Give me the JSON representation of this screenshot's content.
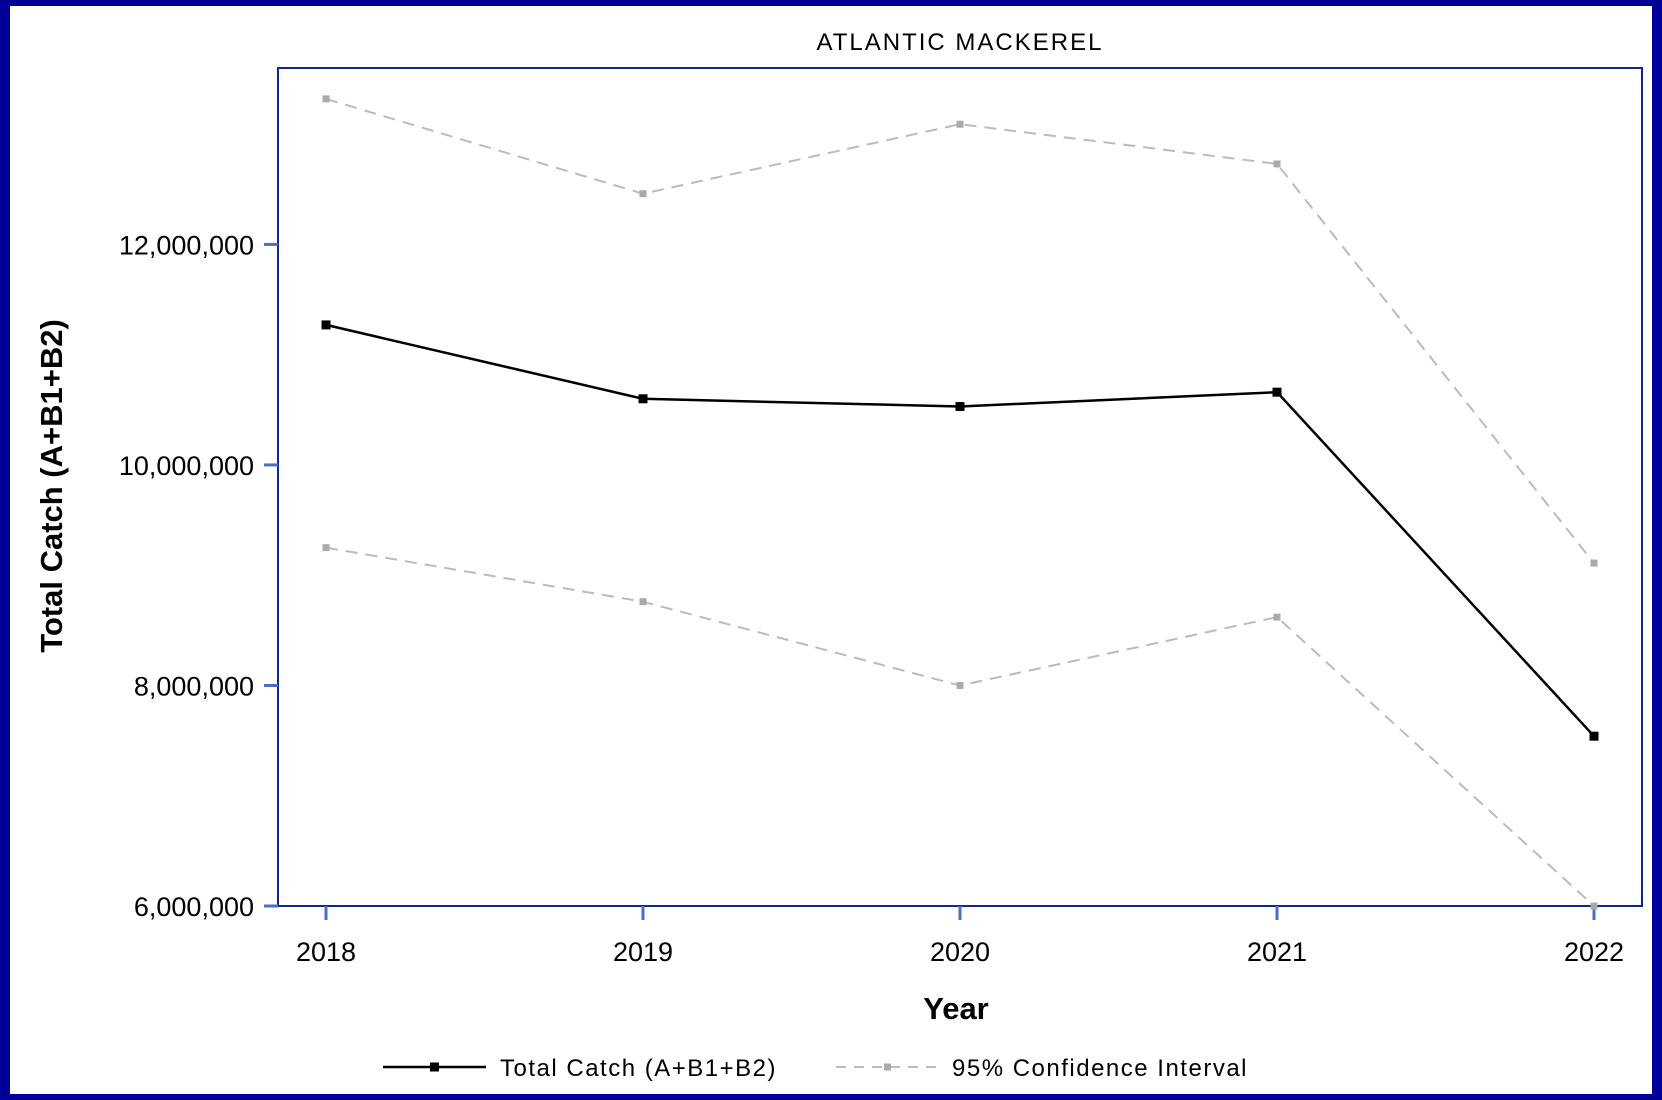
{
  "chart_data": {
    "type": "line",
    "title": "ATLANTIC MACKEREL",
    "xlabel": "Year",
    "ylabel": "Total Catch (A+B1+B2)",
    "x": [
      2018,
      2019,
      2020,
      2021,
      2022
    ],
    "x_tick_labels": [
      "2018",
      "2019",
      "2020",
      "2021",
      "2022"
    ],
    "ylim": [
      6000000,
      13600000
    ],
    "y_ticks": [
      6000000,
      8000000,
      10000000,
      12000000
    ],
    "y_tick_labels": [
      "6,000,000",
      "8,000,000",
      "10,000,000",
      "12,000,000"
    ],
    "series": [
      {
        "name": "Total Catch (A+B1+B2)",
        "style": "solid",
        "color": "#000000",
        "values": [
          11270000,
          10600000,
          10530000,
          10660000,
          7540000
        ]
      },
      {
        "name": "95% Confidence Interval",
        "style": "dashed",
        "color": "#bbbbbb",
        "upper": [
          13320000,
          12460000,
          13090000,
          12730000,
          9110000
        ],
        "lower": [
          9250000,
          8760000,
          8000000,
          8620000,
          6000000
        ]
      }
    ],
    "grid": false,
    "legend_position": "bottom",
    "colors": {
      "background_border": "#000099",
      "plot_frame": "#0a2a8c",
      "axis_ticks": "#4a6fc4"
    }
  }
}
